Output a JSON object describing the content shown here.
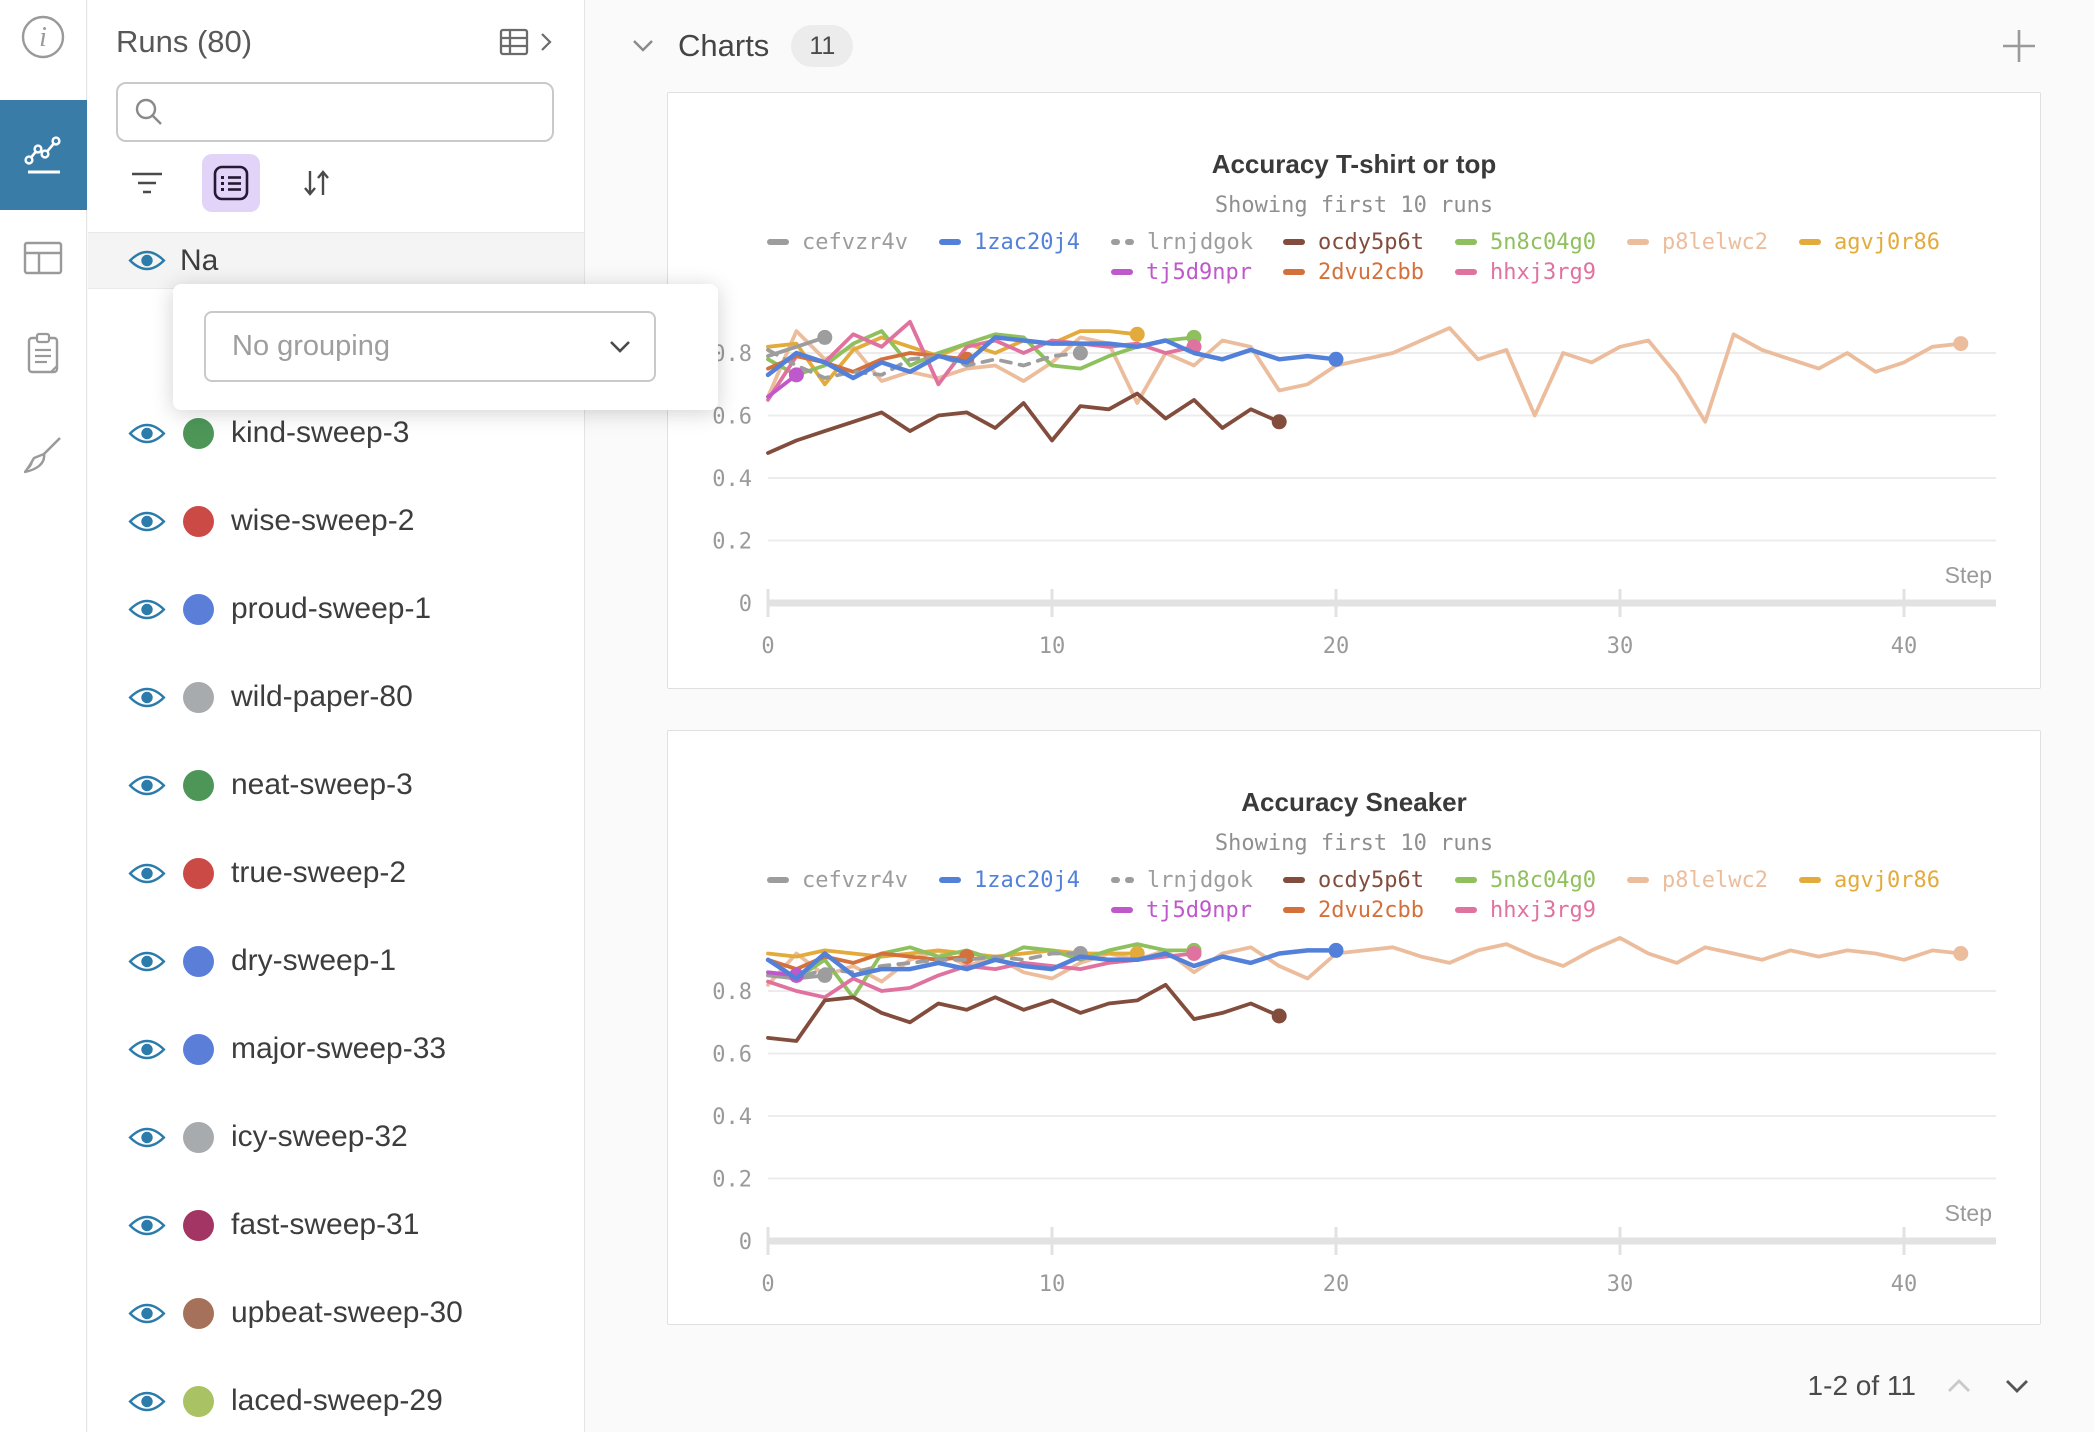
{
  "runs_panel": {
    "title": "Runs (80)",
    "search": {
      "placeholder": "",
      "value": ""
    },
    "list_header": "Na",
    "grouping_popup": {
      "dropdown_placeholder": "No grouping"
    },
    "runs": [
      {
        "name": "kind-sweep-3",
        "color": "#4d9658"
      },
      {
        "name": "wise-sweep-2",
        "color": "#cb4a46"
      },
      {
        "name": "proud-sweep-1",
        "color": "#5b7fd9"
      },
      {
        "name": "wild-paper-80",
        "color": "#a8abae"
      },
      {
        "name": "neat-sweep-3",
        "color": "#4d9658"
      },
      {
        "name": "true-sweep-2",
        "color": "#cb4a46"
      },
      {
        "name": "dry-sweep-1",
        "color": "#5b7fd9"
      },
      {
        "name": "major-sweep-33",
        "color": "#5b7fd9"
      },
      {
        "name": "icy-sweep-32",
        "color": "#a8abae"
      },
      {
        "name": "fast-sweep-31",
        "color": "#a23563"
      },
      {
        "name": "upbeat-sweep-30",
        "color": "#a5715a"
      },
      {
        "name": "laced-sweep-29",
        "color": "#a9c264"
      }
    ]
  },
  "charts_section": {
    "title": "Charts",
    "count": "11",
    "pagination": "1-2 of 11"
  },
  "icons": {
    "rail": [
      "info-icon",
      "chart-workspace-icon",
      "table-icon",
      "notes-icon",
      "sweep-broom-icon"
    ],
    "runs_toolbar": [
      "filter-icon",
      "group-icon",
      "sort-icon"
    ],
    "misc": [
      "search-icon",
      "expand-table-icon",
      "chevron-down-icon",
      "plus-icon",
      "eye-icon",
      "caret-down-icon",
      "page-up-icon",
      "page-down-icon"
    ]
  },
  "chart_data": [
    {
      "type": "line",
      "title": "Accuracy T-shirt or top",
      "subtitle": "Showing first 10 runs",
      "xlabel": "Step",
      "x_ticks": [
        0,
        10,
        20,
        30,
        40
      ],
      "y_ticks": [
        0,
        0.2,
        0.4,
        0.6,
        0.8
      ],
      "ylim": [
        0,
        1
      ],
      "xlim": [
        0,
        43
      ],
      "grid": true,
      "legend": {
        "row1": [
          "cefvzr4v",
          "1zac20j4",
          "lrnjdgok",
          "ocdy5p6t",
          "5n8c04g0",
          "p8lelwc2",
          "agvj0r86"
        ],
        "row2": [
          "tj5d9npr",
          "2dvu2cbb",
          "hhxj3rg9"
        ]
      },
      "series": [
        {
          "name": "p8lelwc2",
          "color": "#ecbd9d",
          "values": [
            0.66,
            0.87,
            0.78,
            0.82,
            0.71,
            0.74,
            0.72,
            0.75,
            0.76,
            0.71,
            0.77,
            0.85,
            0.83,
            0.64,
            0.8,
            0.76,
            0.84,
            0.82,
            0.68,
            0.7,
            0.76,
            0.78,
            0.8,
            0.84,
            0.88,
            0.78,
            0.81,
            0.6,
            0.8,
            0.77,
            0.82,
            0.84,
            0.73,
            0.58,
            0.86,
            0.81,
            0.78,
            0.75,
            0.8,
            0.74,
            0.77,
            0.82,
            0.83
          ]
        },
        {
          "name": "agvj0r86",
          "color": "#e3ab3b",
          "values": [
            0.82,
            0.83,
            0.7,
            0.81,
            0.85,
            0.82,
            0.79,
            0.83,
            0.8,
            0.84,
            0.83,
            0.87,
            0.87,
            0.86
          ]
        },
        {
          "name": "5n8c04g0",
          "color": "#8fc05e",
          "values": [
            0.78,
            0.73,
            0.76,
            0.83,
            0.87,
            0.76,
            0.8,
            0.83,
            0.86,
            0.85,
            0.76,
            0.75,
            0.79,
            0.82,
            0.84,
            0.85
          ]
        },
        {
          "name": "hhxj3rg9",
          "color": "#e0729f",
          "values": [
            0.65,
            0.79,
            0.77,
            0.86,
            0.82,
            0.9,
            0.7,
            0.82,
            0.84,
            0.8,
            0.84,
            0.83,
            0.82,
            0.83,
            0.8,
            0.82
          ]
        },
        {
          "name": "2dvu2cbb",
          "color": "#d4703b",
          "values": [
            0.75,
            0.79,
            0.77,
            0.74,
            0.78,
            0.8,
            0.79,
            0.78
          ]
        },
        {
          "name": "lrnjdgok",
          "color": "#9d9d9d",
          "dash": true,
          "values": [
            0.81,
            0.76,
            0.72,
            0.74,
            0.73,
            0.78,
            0.79,
            0.76,
            0.78,
            0.76,
            0.79,
            0.8
          ]
        },
        {
          "name": "cefvzr4v",
          "color": "#9d9d9d",
          "values": [
            0.79,
            0.82,
            0.85
          ]
        },
        {
          "name": "tj5d9npr",
          "color": "#be58cb",
          "values": [
            0.66,
            0.73
          ]
        },
        {
          "name": "ocdy5p6t",
          "color": "#824d3d",
          "values": [
            0.48,
            0.52,
            0.55,
            0.58,
            0.61,
            0.55,
            0.6,
            0.61,
            0.56,
            0.64,
            0.52,
            0.63,
            0.62,
            0.67,
            0.59,
            0.65,
            0.56,
            0.62,
            0.58
          ]
        },
        {
          "name": "1zac20j4",
          "color": "#5380d8",
          "values": [
            0.73,
            0.8,
            0.77,
            0.72,
            0.77,
            0.74,
            0.79,
            0.77,
            0.85,
            0.84,
            0.83,
            0.83,
            0.83,
            0.82,
            0.84,
            0.8,
            0.78,
            0.81,
            0.78,
            0.79,
            0.78
          ]
        }
      ]
    },
    {
      "type": "line",
      "title": "Accuracy Sneaker",
      "subtitle": "Showing first 10 runs",
      "xlabel": "Step",
      "x_ticks": [
        0,
        10,
        20,
        30,
        40
      ],
      "y_ticks": [
        0,
        0.2,
        0.4,
        0.6,
        0.8
      ],
      "ylim": [
        0,
        1
      ],
      "xlim": [
        0,
        43
      ],
      "grid": true,
      "legend": {
        "row1": [
          "cefvzr4v",
          "1zac20j4",
          "lrnjdgok",
          "ocdy5p6t",
          "5n8c04g0",
          "p8lelwc2",
          "agvj0r86"
        ],
        "row2": [
          "tj5d9npr",
          "2dvu2cbb",
          "hhxj3rg9"
        ]
      },
      "series": [
        {
          "name": "p8lelwc2",
          "color": "#ecbd9d",
          "values": [
            0.82,
            0.92,
            0.85,
            0.88,
            0.83,
            0.9,
            0.93,
            0.88,
            0.91,
            0.86,
            0.84,
            0.89,
            0.92,
            0.9,
            0.93,
            0.86,
            0.92,
            0.94,
            0.88,
            0.84,
            0.92,
            0.93,
            0.94,
            0.91,
            0.89,
            0.93,
            0.95,
            0.91,
            0.88,
            0.93,
            0.97,
            0.92,
            0.89,
            0.94,
            0.92,
            0.9,
            0.93,
            0.91,
            0.93,
            0.92,
            0.9,
            0.93,
            0.92
          ]
        },
        {
          "name": "agvj0r86",
          "color": "#e3ab3b",
          "values": [
            0.92,
            0.91,
            0.93,
            0.92,
            0.91,
            0.92,
            0.93,
            0.92,
            0.91,
            0.92,
            0.93,
            0.92,
            0.92,
            0.92
          ]
        },
        {
          "name": "5n8c04g0",
          "color": "#8fc05e",
          "values": [
            0.86,
            0.84,
            0.9,
            0.78,
            0.92,
            0.94,
            0.91,
            0.93,
            0.9,
            0.94,
            0.93,
            0.9,
            0.93,
            0.95,
            0.93,
            0.93
          ]
        },
        {
          "name": "hhxj3rg9",
          "color": "#e0729f",
          "values": [
            0.83,
            0.8,
            0.78,
            0.84,
            0.8,
            0.81,
            0.85,
            0.88,
            0.87,
            0.89,
            0.88,
            0.87,
            0.89,
            0.9,
            0.91,
            0.92
          ]
        },
        {
          "name": "2dvu2cbb",
          "color": "#d4703b",
          "values": [
            0.9,
            0.87,
            0.91,
            0.89,
            0.92,
            0.91,
            0.9,
            0.91
          ]
        },
        {
          "name": "lrnjdgok",
          "color": "#9d9d9d",
          "dash": true,
          "values": [
            0.85,
            0.84,
            0.87,
            0.86,
            0.88,
            0.89,
            0.9,
            0.9,
            0.91,
            0.9,
            0.92,
            0.92
          ]
        },
        {
          "name": "cefvzr4v",
          "color": "#9d9d9d",
          "values": [
            0.85,
            0.84,
            0.85
          ]
        },
        {
          "name": "tj5d9npr",
          "color": "#be58cb",
          "values": [
            0.86,
            0.85
          ]
        },
        {
          "name": "ocdy5p6t",
          "color": "#824d3d",
          "values": [
            0.65,
            0.64,
            0.77,
            0.78,
            0.73,
            0.7,
            0.76,
            0.74,
            0.78,
            0.74,
            0.77,
            0.73,
            0.76,
            0.77,
            0.82,
            0.71,
            0.73,
            0.76,
            0.72
          ]
        },
        {
          "name": "1zac20j4",
          "color": "#5380d8",
          "values": [
            0.9,
            0.84,
            0.92,
            0.85,
            0.87,
            0.87,
            0.89,
            0.87,
            0.9,
            0.88,
            0.87,
            0.91,
            0.9,
            0.9,
            0.92,
            0.88,
            0.91,
            0.89,
            0.92,
            0.93,
            0.93
          ]
        }
      ]
    }
  ]
}
